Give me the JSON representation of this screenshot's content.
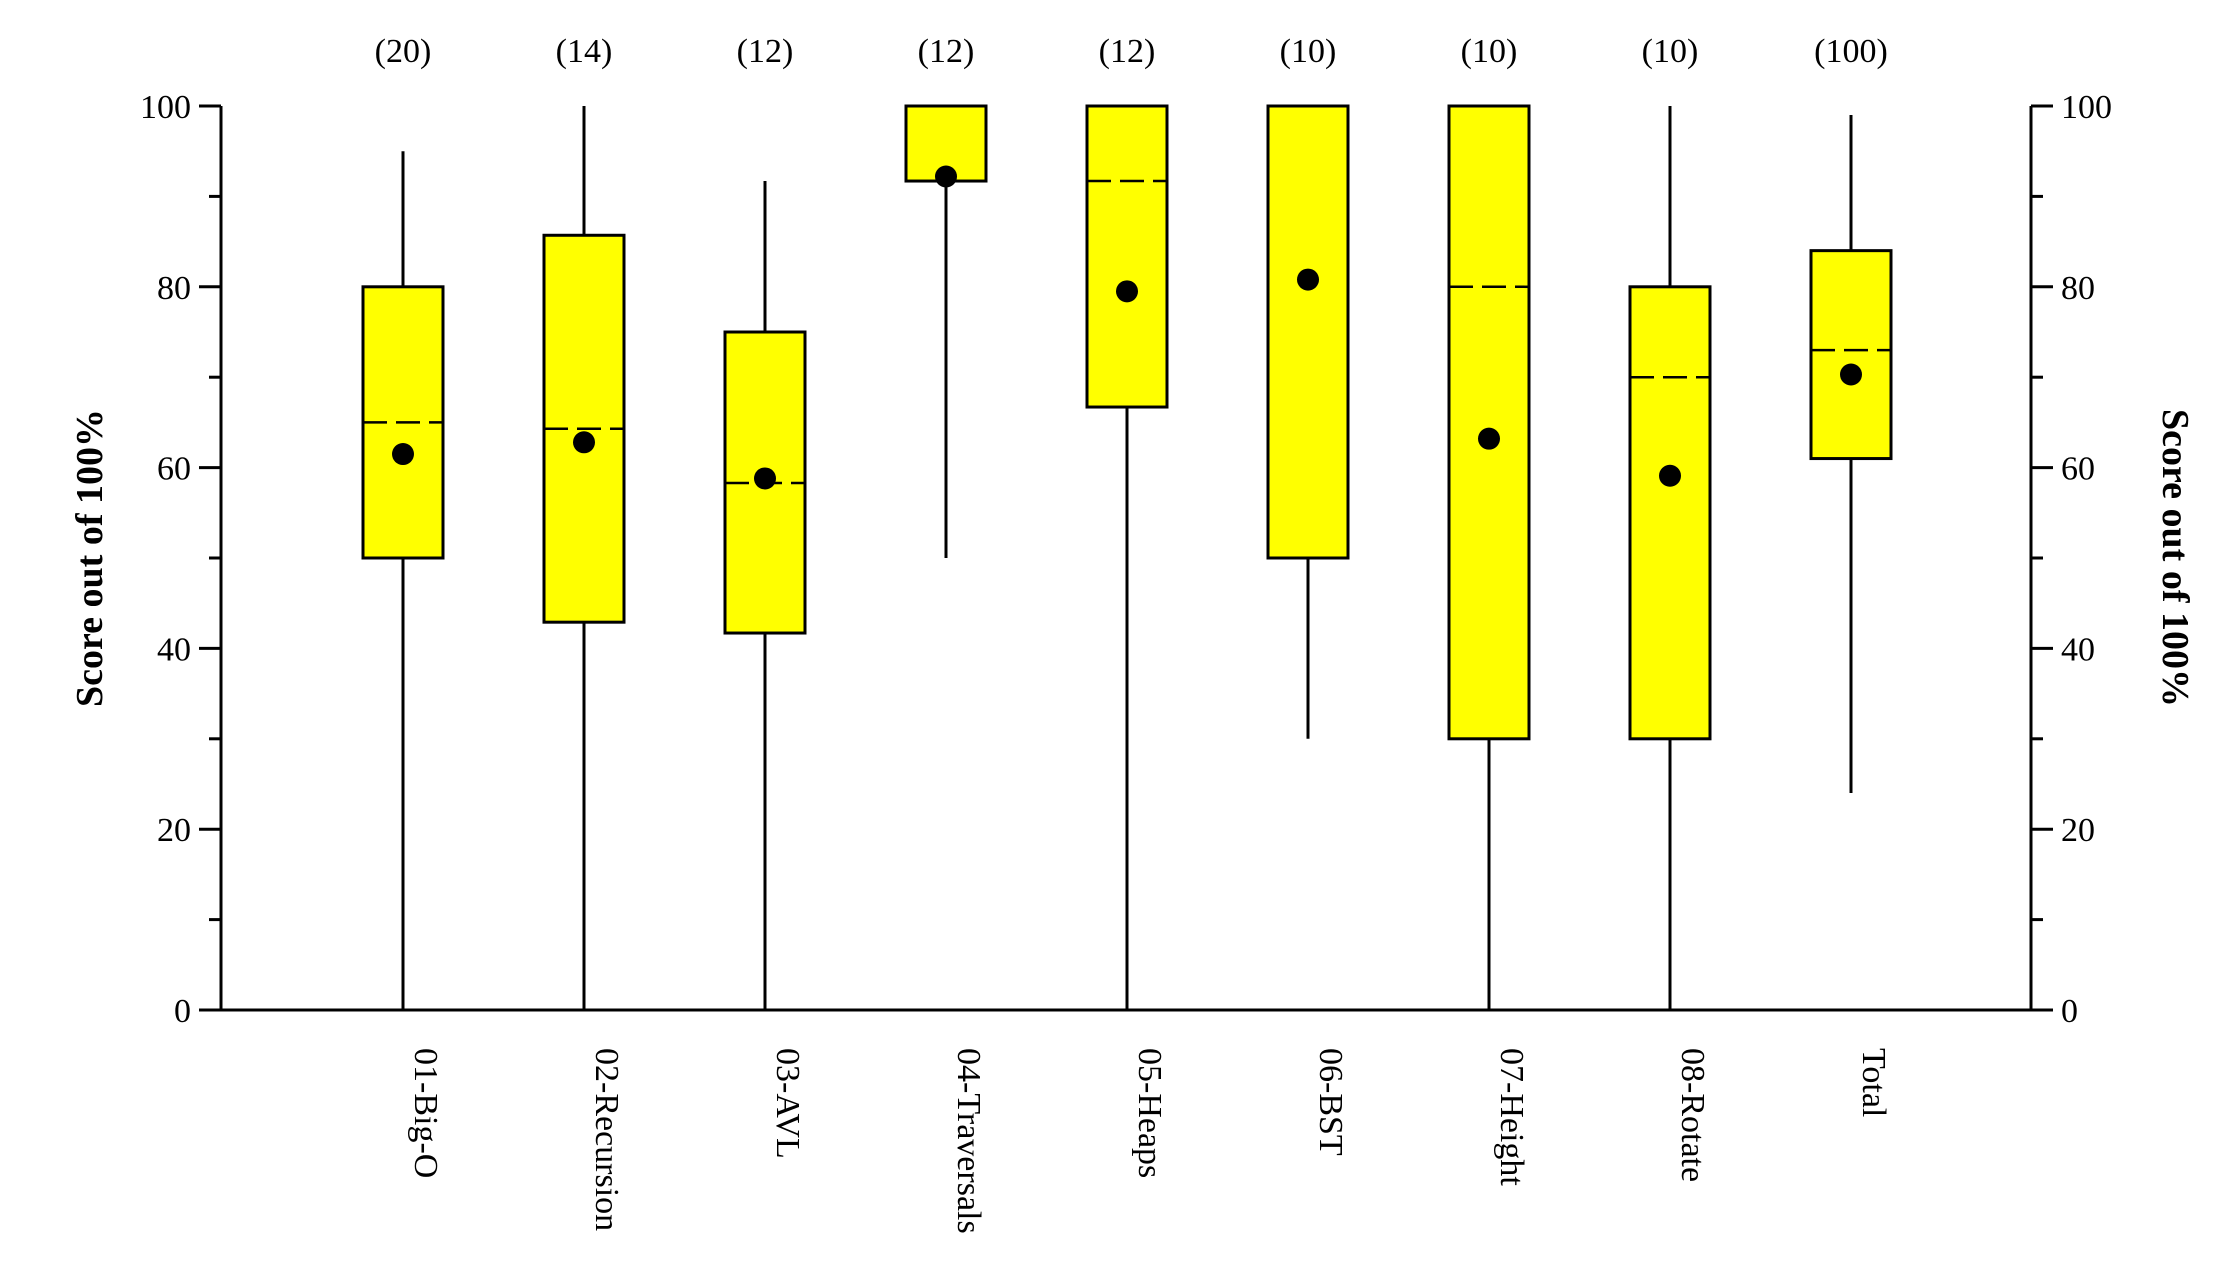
{
  "chart_data": {
    "type": "box",
    "title": "",
    "xlabel": "",
    "ylabel": "Score out of 100%",
    "ylabel_right": "Score out of 100%",
    "ylim": [
      0,
      100
    ],
    "yticks": [
      0,
      20,
      40,
      60,
      80,
      100
    ],
    "y_minor_step": 10,
    "grid": false,
    "legend": "none",
    "box_color": "#ffff00",
    "box_stroke": "#000000",
    "series": [
      {
        "category": "01-Big-O",
        "count": "(20)",
        "min": 0,
        "q1": 50,
        "median": 65,
        "q3": 80,
        "max": 95,
        "mean": 61.5
      },
      {
        "category": "02-Recursion",
        "count": "(14)",
        "min": 0,
        "q1": 42.9,
        "median": 64.3,
        "q3": 85.7,
        "max": 100,
        "mean": 62.8
      },
      {
        "category": "03-AVL",
        "count": "(12)",
        "min": 0,
        "q1": 41.7,
        "median": 58.3,
        "q3": 75,
        "max": 91.7,
        "mean": 58.8
      },
      {
        "category": "04-Traversals",
        "count": "(12)",
        "min": 50,
        "q1": 91.7,
        "median": 100,
        "q3": 100,
        "max": 100,
        "mean": 92.2
      },
      {
        "category": "05-Heaps",
        "count": "(12)",
        "min": 0,
        "q1": 66.7,
        "median": 91.7,
        "q3": 100,
        "max": 100,
        "mean": 79.5
      },
      {
        "category": "06-BST",
        "count": "(10)",
        "min": 30,
        "q1": 50,
        "median": 100,
        "q3": 100,
        "max": 100,
        "mean": 80.8
      },
      {
        "category": "07-Height",
        "count": "(10)",
        "min": 0,
        "q1": 30,
        "median": 80,
        "q3": 100,
        "max": 100,
        "mean": 63.2
      },
      {
        "category": "08-Rotate",
        "count": "(10)",
        "min": 0,
        "q1": 30,
        "median": 70,
        "q3": 80,
        "max": 100,
        "mean": 59.1
      },
      {
        "category": "Total",
        "count": "(100)",
        "min": 24,
        "q1": 61,
        "median": 73,
        "q3": 84,
        "max": 99,
        "mean": 70.3
      }
    ]
  }
}
